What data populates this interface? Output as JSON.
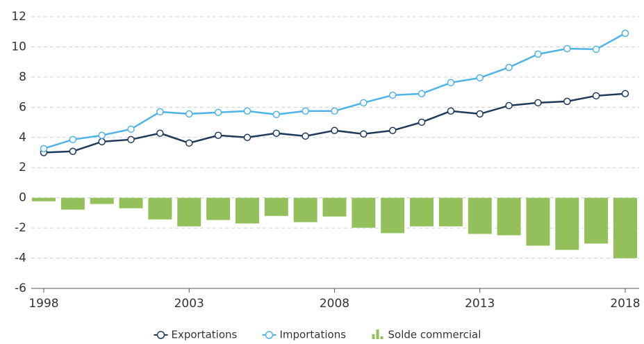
{
  "chart_data": {
    "type": "line",
    "x": [
      1998,
      1999,
      2000,
      2001,
      2002,
      2003,
      2004,
      2005,
      2006,
      2007,
      2008,
      2009,
      2010,
      2011,
      2012,
      2013,
      2014,
      2015,
      2016,
      2017,
      2018
    ],
    "xlim": [
      1998,
      2018
    ],
    "xticks": [
      1998,
      2003,
      2008,
      2013,
      2018
    ],
    "ylim": [
      -6,
      12
    ],
    "yticks": [
      -6,
      -4,
      -2,
      0,
      2,
      4,
      6,
      8,
      10,
      12
    ],
    "grid": true,
    "legend": "bottom",
    "series": [
      {
        "name": "Exportations",
        "color": "#1f3a5a",
        "values": [
          3.0,
          3.08,
          3.72,
          3.86,
          4.28,
          3.63,
          4.14,
          4.0,
          4.28,
          4.09,
          4.46,
          4.23,
          4.46,
          5.01,
          5.75,
          5.56,
          6.11,
          6.3,
          6.39,
          6.76,
          6.9
        ]
      },
      {
        "name": "Importations",
        "color": "#4fb3e8",
        "values": [
          3.26,
          3.86,
          4.14,
          4.55,
          5.7,
          5.56,
          5.66,
          5.75,
          5.52,
          5.75,
          5.75,
          6.3,
          6.8,
          6.9,
          7.63,
          7.95,
          8.64,
          9.52,
          9.88,
          9.84,
          10.9
        ]
      },
      {
        "name": "Solde commercial",
        "type": "bar",
        "color": "#93c05a",
        "values": [
          -0.23,
          -0.78,
          -0.41,
          -0.69,
          -1.43,
          -1.89,
          -1.47,
          -1.7,
          -1.2,
          -1.61,
          -1.24,
          -1.98,
          -2.34,
          -1.89,
          -1.89,
          -2.39,
          -2.48,
          -3.17,
          -3.45,
          -3.03,
          -4.0
        ]
      }
    ]
  }
}
